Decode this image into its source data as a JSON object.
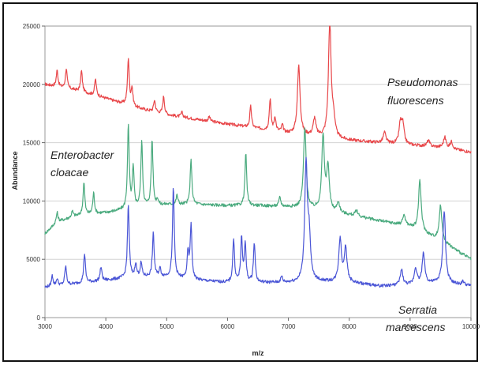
{
  "chart_data": {
    "type": "line",
    "xlabel": "m/z",
    "ylabel": "Abundance",
    "xlim": [
      3000,
      10000
    ],
    "ylim": [
      0,
      25000
    ],
    "x_ticks": [
      3000,
      4000,
      5000,
      6000,
      7000,
      8000,
      9000,
      10000
    ],
    "y_ticks": [
      0,
      5000,
      10000,
      15000,
      20000,
      25000
    ],
    "grid": true,
    "series": [
      {
        "name": "Pseudomonas fluorescens",
        "label_lines": [
          "Pseudomonas",
          "fluorescens"
        ],
        "color": "#e8474a",
        "baseline": [
          [
            3000,
            20000
          ],
          [
            3500,
            19500
          ],
          [
            4000,
            18800
          ],
          [
            4500,
            18000
          ],
          [
            5000,
            17400
          ],
          [
            5500,
            17000
          ],
          [
            6000,
            16600
          ],
          [
            6500,
            16200
          ],
          [
            7000,
            15800
          ],
          [
            7500,
            15500
          ],
          [
            8000,
            15200
          ],
          [
            8500,
            15000
          ],
          [
            9000,
            14800
          ],
          [
            9500,
            14600
          ],
          [
            10000,
            14200
          ]
        ],
        "peaks": [
          [
            3200,
            1400
          ],
          [
            3350,
            1700
          ],
          [
            3600,
            1800
          ],
          [
            3830,
            1400
          ],
          [
            4370,
            4000
          ],
          [
            4430,
            1500
          ],
          [
            4800,
            1000
          ],
          [
            4950,
            1500
          ],
          [
            5250,
            400
          ],
          [
            5700,
            400
          ],
          [
            6380,
            1800
          ],
          [
            6700,
            2700
          ],
          [
            6780,
            1200
          ],
          [
            6900,
            600
          ],
          [
            7170,
            5900
          ],
          [
            7430,
            1500
          ],
          [
            7680,
            10000
          ],
          [
            7740,
            1500
          ],
          [
            8580,
            900
          ],
          [
            8840,
            1700
          ],
          [
            8880,
            1600
          ],
          [
            9300,
            500
          ],
          [
            9570,
            900
          ],
          [
            9680,
            600
          ]
        ]
      },
      {
        "name": "Enterobacter cloacae",
        "label_lines": [
          "Enterobacter",
          "cloacae"
        ],
        "color": "#4aaa7e",
        "baseline": [
          [
            3000,
            7200
          ],
          [
            3200,
            8200
          ],
          [
            3500,
            8700
          ],
          [
            4000,
            9000
          ],
          [
            4500,
            9400
          ],
          [
            5000,
            9700
          ],
          [
            5500,
            9700
          ],
          [
            6000,
            9600
          ],
          [
            6500,
            9600
          ],
          [
            7000,
            9500
          ],
          [
            7500,
            9200
          ],
          [
            8000,
            8800
          ],
          [
            8500,
            8300
          ],
          [
            9000,
            7800
          ],
          [
            9500,
            6600
          ],
          [
            10000,
            5000
          ]
        ],
        "peaks": [
          [
            3200,
            800
          ],
          [
            3450,
            500
          ],
          [
            3640,
            2800
          ],
          [
            3800,
            1800
          ],
          [
            4370,
            7100
          ],
          [
            4450,
            3400
          ],
          [
            4590,
            5600
          ],
          [
            4760,
            5700
          ],
          [
            4850,
            500
          ],
          [
            5170,
            800
          ],
          [
            5400,
            3800
          ],
          [
            6300,
            4500
          ],
          [
            6860,
            800
          ],
          [
            7270,
            6900
          ],
          [
            7570,
            6300
          ],
          [
            7650,
            3700
          ],
          [
            7820,
            900
          ],
          [
            8120,
            500
          ],
          [
            8900,
            900
          ],
          [
            9160,
            4300
          ],
          [
            9500,
            3000
          ]
        ]
      },
      {
        "name": "Serratia marcescens",
        "label_lines": [
          "Serratia",
          "marcescens"
        ],
        "color": "#4a55d6",
        "baseline": [
          [
            3000,
            2600
          ],
          [
            3500,
            2900
          ],
          [
            4000,
            3200
          ],
          [
            4500,
            3500
          ],
          [
            5000,
            3500
          ],
          [
            5500,
            3200
          ],
          [
            6000,
            3000
          ],
          [
            6500,
            3000
          ],
          [
            7000,
            3000
          ],
          [
            7500,
            3100
          ],
          [
            8000,
            3000
          ],
          [
            8500,
            2700
          ],
          [
            9000,
            2800
          ],
          [
            9500,
            3000
          ],
          [
            10000,
            2700
          ]
        ],
        "peaks": [
          [
            3120,
            900
          ],
          [
            3200,
            600
          ],
          [
            3340,
            1600
          ],
          [
            3650,
            2500
          ],
          [
            3920,
            1200
          ],
          [
            4370,
            6300
          ],
          [
            4490,
            1100
          ],
          [
            4580,
            1200
          ],
          [
            4780,
            3700
          ],
          [
            4890,
            700
          ],
          [
            5110,
            7700
          ],
          [
            5350,
            2200
          ],
          [
            5400,
            4600
          ],
          [
            6100,
            3700
          ],
          [
            6230,
            3700
          ],
          [
            6290,
            3300
          ],
          [
            6440,
            3400
          ],
          [
            6890,
            500
          ],
          [
            7290,
            10000
          ],
          [
            7340,
            3500
          ],
          [
            7850,
            3700
          ],
          [
            7940,
            3000
          ],
          [
            8860,
            1300
          ],
          [
            9090,
            1400
          ],
          [
            9220,
            2600
          ],
          [
            9560,
            6200
          ],
          [
            9870,
            300
          ]
        ]
      }
    ]
  }
}
